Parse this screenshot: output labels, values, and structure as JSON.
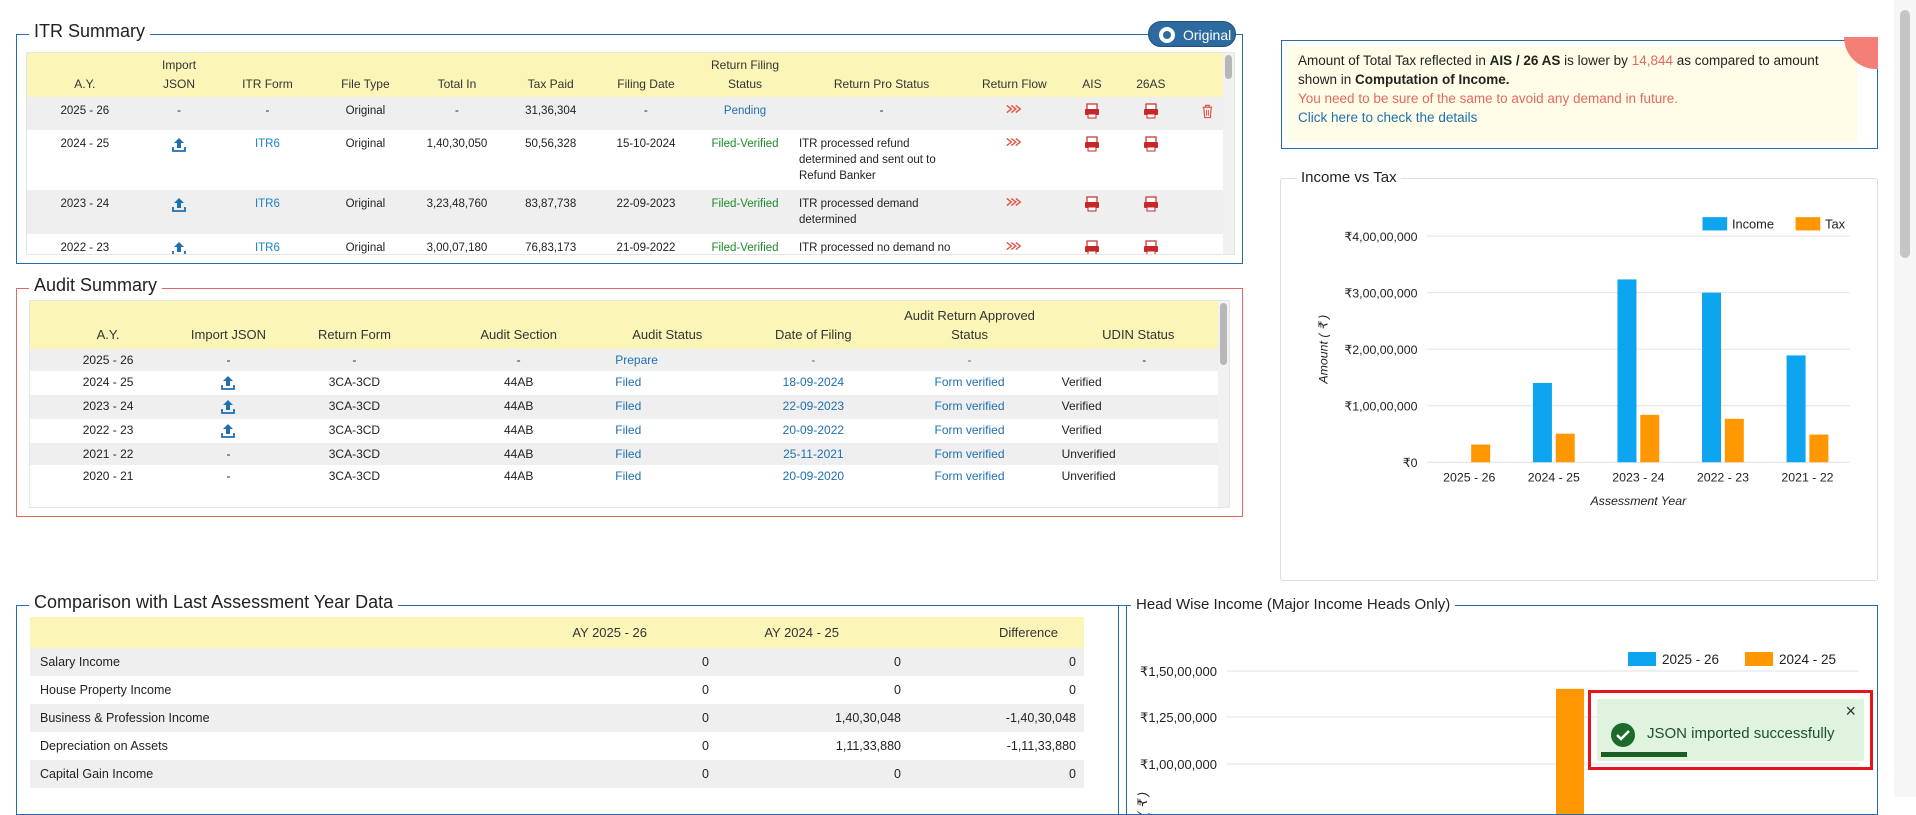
{
  "itr": {
    "title": "ITR Summary",
    "badge": "Original",
    "headers": [
      "A.Y.",
      "Import JSON",
      "ITR Form",
      "File Type",
      "Total In",
      "Tax Paid",
      "Filing Date",
      "Return Filing Status",
      "Return Pro Status",
      "Return Flow",
      "AIS",
      "26AS",
      ""
    ],
    "rows": [
      {
        "ay": "2025 - 26",
        "imp": "-",
        "form": "-",
        "type": "Original",
        "total": "-",
        "tax": "31,36,304",
        "date": "-",
        "status": "Pending",
        "pro": "-"
      },
      {
        "ay": "2024 - 25",
        "imp": "up",
        "form": "ITR6",
        "type": "Original",
        "total": "1,40,30,050",
        "tax": "50,56,328",
        "date": "15-10-2024",
        "status": "Filed-Verified",
        "pro": "ITR processed refund determined and sent out to Refund Banker"
      },
      {
        "ay": "2023 - 24",
        "imp": "up",
        "form": "ITR6",
        "type": "Original",
        "total": "3,23,48,760",
        "tax": "83,87,738",
        "date": "22-09-2023",
        "status": "Filed-Verified",
        "pro": "ITR processed demand determined"
      },
      {
        "ay": "2022 - 23",
        "imp": "up",
        "form": "ITR6",
        "type": "Original",
        "total": "3,00,07,180",
        "tax": "76,83,173",
        "date": "21-09-2022",
        "status": "Filed-Verified",
        "pro": "ITR processed no demand no"
      }
    ]
  },
  "audit": {
    "title": "Audit Summary",
    "headers": [
      "A.Y.",
      "Import JSON",
      "Return Form",
      "Audit Section",
      "Audit Status",
      "Date of Filing",
      "Audit Return Approved Status",
      "UDIN Status"
    ],
    "rows": [
      {
        "ay": "2025 - 26",
        "imp": "-",
        "form": "-",
        "sec": "-",
        "status": "Prepare",
        "date": "-",
        "appr": "-",
        "udin": "-"
      },
      {
        "ay": "2024 - 25",
        "imp": "up",
        "form": "3CA-3CD",
        "sec": "44AB",
        "status": "Filed",
        "date": "18-09-2024",
        "appr": "Form verified",
        "udin": "Verified"
      },
      {
        "ay": "2023 - 24",
        "imp": "up",
        "form": "3CA-3CD",
        "sec": "44AB",
        "status": "Filed",
        "date": "22-09-2023",
        "appr": "Form verified",
        "udin": "Verified"
      },
      {
        "ay": "2022 - 23",
        "imp": "up",
        "form": "3CA-3CD",
        "sec": "44AB",
        "status": "Filed",
        "date": "20-09-2022",
        "appr": "Form verified",
        "udin": "Verified"
      },
      {
        "ay": "2021 - 22",
        "imp": "-",
        "form": "3CA-3CD",
        "sec": "44AB",
        "status": "Filed",
        "date": "25-11-2021",
        "appr": "Form verified",
        "udin": "Unverified"
      },
      {
        "ay": "2020 - 21",
        "imp": "-",
        "form": "3CA-3CD",
        "sec": "44AB",
        "status": "Filed",
        "date": "20-09-2020",
        "appr": "Form verified",
        "udin": "Unverified"
      }
    ]
  },
  "alert": {
    "p1": "Amount of Total Tax reflected in ",
    "b1": "AIS / 26 AS",
    "p2": " is lower by ",
    "amt": "14,844",
    "p3": " as compared to amount shown in ",
    "b2": "Computation of Income.",
    "warn": "You need to be sure of the same to avoid any demand in future.",
    "link": "Click here to check the details"
  },
  "compare": {
    "title": "Comparison with Last Assessment Year Data",
    "headers": [
      "",
      "AY 2025 - 26",
      "AY 2024 - 25",
      "Difference"
    ],
    "rows": [
      {
        "label": "Salary Income",
        "a": "0",
        "b": "0",
        "d": "0"
      },
      {
        "label": "House Property Income",
        "a": "0",
        "b": "0",
        "d": "0"
      },
      {
        "label": "Business & Profession Income",
        "a": "0",
        "b": "1,40,30,048",
        "d": "-1,40,30,048"
      },
      {
        "label": "Depreciation on Assets",
        "a": "0",
        "b": "1,11,33,880",
        "d": "-1,11,33,880"
      },
      {
        "label": "Capital Gain Income",
        "a": "0",
        "b": "0",
        "d": "0"
      }
    ]
  },
  "toast": {
    "message": "JSON imported successfully",
    "close": "×"
  },
  "colors": {
    "income": "#0ea5f0",
    "tax": "#ff9800"
  },
  "chart_data": [
    {
      "type": "bar",
      "title": "Income vs Tax",
      "xlabel": "Assessment Year",
      "ylabel": "Amount ( ₹ )",
      "categories": [
        "2025 - 26",
        "2024 - 25",
        "2023 - 24",
        "2022 - 23",
        "2021 - 22"
      ],
      "series": [
        {
          "name": "Income",
          "values": [
            0,
            14030050,
            32348760,
            30007180,
            18900000
          ]
        },
        {
          "name": "Tax",
          "values": [
            3136304,
            5056328,
            8387738,
            7683173,
            4900000
          ]
        }
      ],
      "ylim": [
        0,
        40000000
      ],
      "yticks": [
        "₹0",
        "₹1,00,00,000",
        "₹2,00,00,000",
        "₹3,00,00,000",
        "₹4,00,00,000"
      ],
      "legend": "top-right",
      "grid": true
    },
    {
      "type": "bar",
      "title": "Head Wise Income (Major Income Heads Only)",
      "ylabel": "( ₹ )",
      "series": [
        {
          "name": "2025 - 26",
          "values": [
            0
          ]
        },
        {
          "name": "2024 - 25",
          "values": [
            14030048
          ]
        }
      ],
      "yticks": [
        "₹1,00,00,000",
        "₹1,25,00,000",
        "₹1,50,00,000"
      ],
      "legend": "top-right",
      "grid": true
    }
  ]
}
